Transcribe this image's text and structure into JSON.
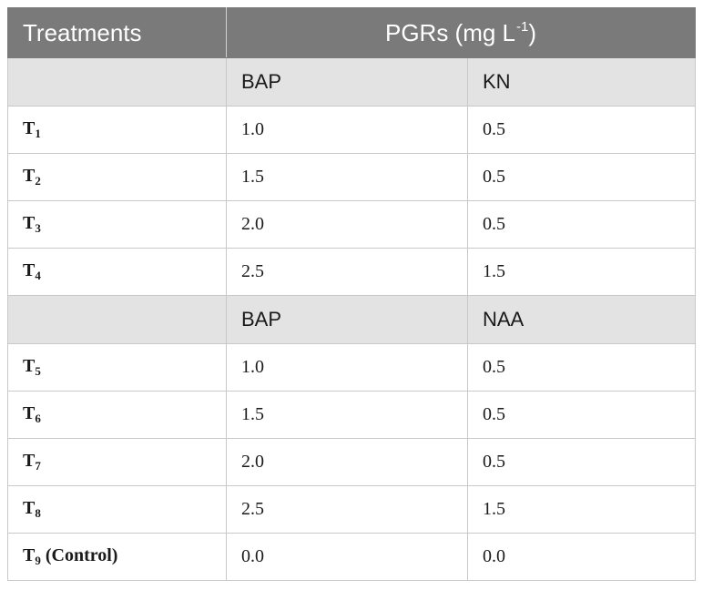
{
  "header": {
    "treatments_label": "Treatments",
    "pgr_label": "PGRs (mg L",
    "pgr_unit_exp": "-1",
    "pgr_label_close": ")"
  },
  "groups": [
    {
      "col2": "BAP",
      "col3": "KN",
      "rows": [
        {
          "t": "T",
          "sub": "1",
          "suffix": "",
          "v1": "1.0",
          "v2": "0.5"
        },
        {
          "t": "T",
          "sub": "2",
          "suffix": "",
          "v1": "1.5",
          "v2": "0.5"
        },
        {
          "t": "T",
          "sub": "3",
          "suffix": "",
          "v1": "2.0",
          "v2": "0.5"
        },
        {
          "t": "T",
          "sub": "4",
          "suffix": "",
          "v1": "2.5",
          "v2": "1.5"
        }
      ]
    },
    {
      "col2": "BAP",
      "col3": "NAA",
      "rows": [
        {
          "t": "T",
          "sub": "5",
          "suffix": "",
          "v1": "1.0",
          "v2": "0.5"
        },
        {
          "t": "T",
          "sub": "6",
          "suffix": "",
          "v1": "1.5",
          "v2": "0.5"
        },
        {
          "t": "T",
          "sub": "7",
          "suffix": "",
          "v1": "2.0",
          "v2": "0.5"
        },
        {
          "t": "T",
          "sub": "8",
          "suffix": "",
          "v1": "2.5",
          "v2": "1.5"
        },
        {
          "t": "T",
          "sub": "9",
          "suffix": " (Control)",
          "v1": "0.0",
          "v2": "0.0"
        }
      ]
    }
  ],
  "colors": {
    "header_bg": "#7a7a7a",
    "subheader_bg": "#e3e3e3",
    "border": "#c8c8c8"
  }
}
